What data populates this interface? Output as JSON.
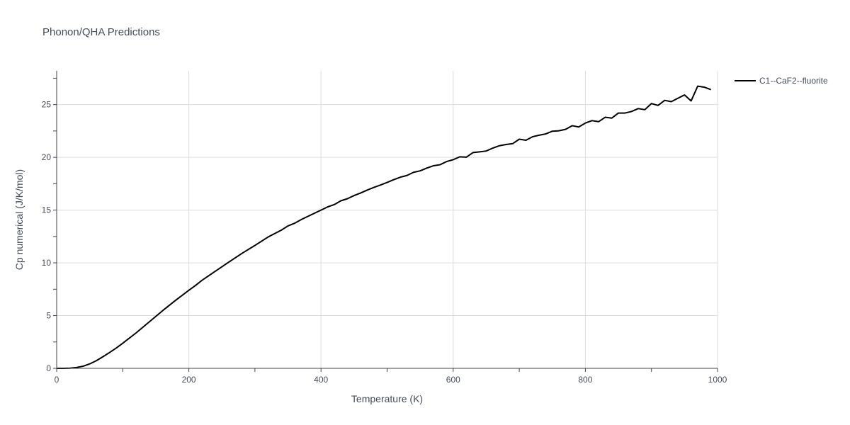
{
  "chart_data": {
    "type": "line",
    "title": "Phonon/QHA Predictions",
    "xlabel": "Temperature (K)",
    "ylabel": "Cp numerical (J/K/mol)",
    "xlim": [
      0,
      1000
    ],
    "ylim": [
      0,
      28.2
    ],
    "xticks": [
      0,
      200,
      400,
      600,
      800,
      1000
    ],
    "yticks": [
      0,
      5,
      10,
      15,
      20,
      25
    ],
    "grid": true,
    "legend_position": "top-right",
    "series": [
      {
        "name": "C1--CaF2--fluorite",
        "color": "#000000",
        "x": [
          0,
          10,
          20,
          30,
          40,
          50,
          60,
          70,
          80,
          90,
          100,
          120,
          140,
          160,
          180,
          200,
          210,
          220,
          240,
          260,
          280,
          300,
          320,
          340,
          350,
          360,
          370,
          380,
          400,
          410,
          420,
          430,
          440,
          450,
          460,
          470,
          480,
          490,
          500,
          510,
          520,
          530,
          540,
          550,
          560,
          570,
          580,
          590,
          600,
          610,
          620,
          630,
          640,
          650,
          660,
          670,
          680,
          690,
          700,
          710,
          720,
          730,
          740,
          750,
          760,
          770,
          780,
          790,
          800,
          810,
          820,
          830,
          840,
          850,
          860,
          870,
          880,
          890,
          900,
          910,
          920,
          930,
          940,
          950,
          960,
          970,
          980,
          990
        ],
        "y": [
          0,
          0,
          0.02,
          0.08,
          0.2,
          0.42,
          0.72,
          1.1,
          1.5,
          1.92,
          2.38,
          3.35,
          4.4,
          5.45,
          6.45,
          7.4,
          7.85,
          8.35,
          9.2,
          10.05,
          10.88,
          11.65,
          12.45,
          13.1,
          13.5,
          13.75,
          14.1,
          14.4,
          15.0,
          15.3,
          15.52,
          15.88,
          16.08,
          16.38,
          16.62,
          16.9,
          17.15,
          17.38,
          17.62,
          17.88,
          18.12,
          18.28,
          18.58,
          18.72,
          18.98,
          19.2,
          19.3,
          19.6,
          19.78,
          20.05,
          20.02,
          20.45,
          20.52,
          20.6,
          20.88,
          21.1,
          21.22,
          21.3,
          21.72,
          21.62,
          21.95,
          22.1,
          22.22,
          22.48,
          22.52,
          22.65,
          23.0,
          22.88,
          23.25,
          23.48,
          23.38,
          23.8,
          23.72,
          24.2,
          24.2,
          24.35,
          24.62,
          24.52,
          25.1,
          24.92,
          25.4,
          25.28,
          25.6,
          25.92,
          25.35,
          26.75,
          26.65,
          26.42
        ]
      }
    ]
  }
}
